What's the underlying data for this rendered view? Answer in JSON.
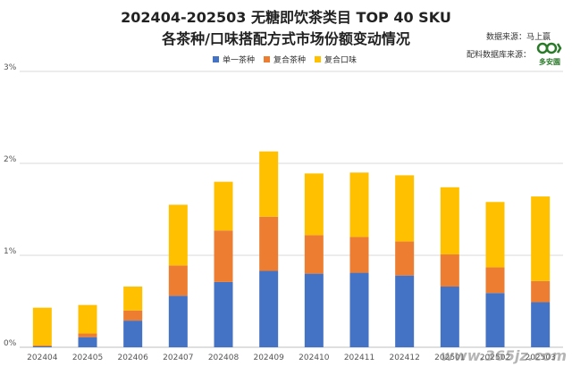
{
  "header": {
    "title_line1": "202404-202503 无糖即饮茶类目 TOP 40 SKU",
    "title_line2": "各茶种/口味搭配方式市场份额变动情况",
    "source_label": "数据来源：马上赢",
    "ingredient_source_label": "配料数据库来源：",
    "logo_text": "多安園"
  },
  "watermark": "www.365jz.com",
  "colors": {
    "single_tea": "#4472C4",
    "blend_tea": "#ED7D31",
    "blend_flavor": "#FFC000",
    "grid": "#d9d9d9",
    "axis_text": "#555555"
  },
  "chart_data": {
    "type": "bar",
    "stacked": true,
    "categories": [
      "202404",
      "202405",
      "202406",
      "202407",
      "202408",
      "202409",
      "202410",
      "202411",
      "202412",
      "202501",
      "202502",
      "202503"
    ],
    "series": [
      {
        "name": "单一茶种",
        "values": [
          0.01,
          0.11,
          0.29,
          0.56,
          0.71,
          0.83,
          0.8,
          0.81,
          0.78,
          0.66,
          0.59,
          0.49
        ]
      },
      {
        "name": "复合茶种",
        "values": [
          0.01,
          0.04,
          0.11,
          0.33,
          0.56,
          0.59,
          0.42,
          0.39,
          0.37,
          0.35,
          0.28,
          0.23
        ]
      },
      {
        "name": "复合口味",
        "values": [
          0.41,
          0.31,
          0.26,
          0.66,
          0.53,
          0.71,
          0.67,
          0.7,
          0.72,
          0.73,
          0.71,
          0.92
        ]
      }
    ],
    "ylim": [
      0,
      3
    ],
    "yticks": [
      "0%",
      "1%",
      "2%",
      "3%"
    ],
    "grid": true,
    "legend_position": "top-center",
    "title": "202404-202503 无糖即饮茶类目 TOP 40 SKU 各茶种/口味搭配方式市场份额变动情况"
  }
}
